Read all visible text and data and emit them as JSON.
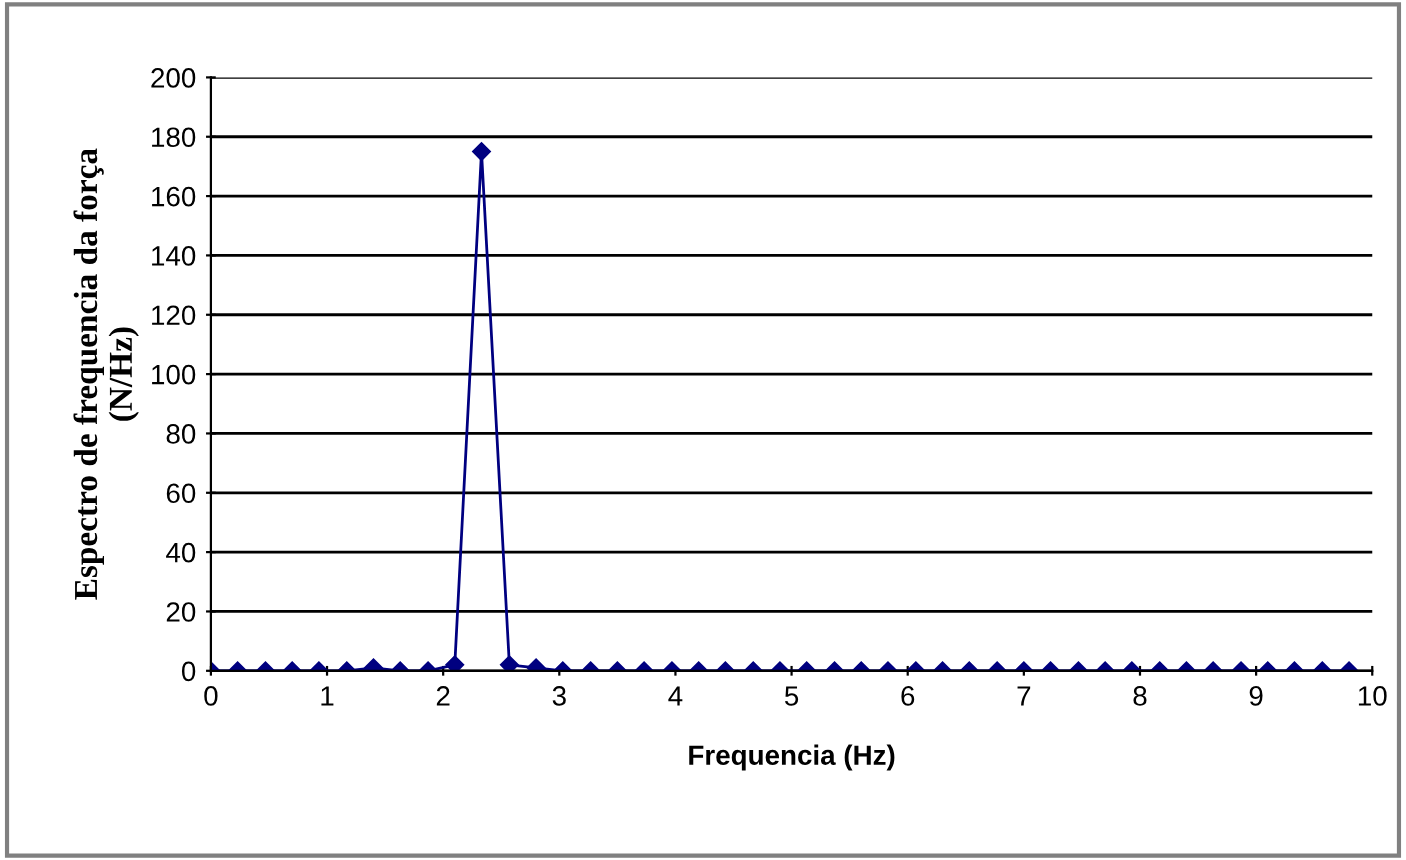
{
  "chart_data": {
    "type": "line",
    "xlabel": "Frequencia (Hz)",
    "ylabel": "Espectro de frequencia da força\n(N/Hz)",
    "x": [
      0,
      0.23,
      0.47,
      0.7,
      0.93,
      1.17,
      1.4,
      1.63,
      1.87,
      2.1,
      2.33,
      2.57,
      2.8,
      3.03,
      3.27,
      3.5,
      3.73,
      3.97,
      4.2,
      4.43,
      4.67,
      4.9,
      5.13,
      5.37,
      5.6,
      5.83,
      6.07,
      6.3,
      6.53,
      6.77,
      7.0,
      7.23,
      7.47,
      7.7,
      7.93,
      8.17,
      8.4,
      8.63,
      8.87,
      9.1,
      9.33,
      9.57,
      9.8
    ],
    "series": [
      {
        "color": "#000080",
        "values": [
          0,
          0,
          0,
          0,
          0,
          0,
          1,
          0,
          0,
          2,
          175,
          2,
          1,
          0,
          0,
          0,
          0,
          0,
          0,
          0,
          0,
          0,
          0,
          0,
          0,
          0,
          0,
          0,
          0,
          0,
          0,
          0,
          0,
          0,
          0,
          0,
          0,
          0,
          0,
          0,
          0,
          0,
          0
        ]
      }
    ],
    "xlim": [
      0,
      10
    ],
    "xticks": [
      0,
      1,
      2,
      3,
      4,
      5,
      6,
      7,
      8,
      9,
      10
    ],
    "ylim": [
      0,
      200
    ],
    "yticks": [
      0,
      20,
      40,
      60,
      80,
      100,
      120,
      140,
      160,
      180,
      200
    ],
    "grid": "y",
    "marker": "diamond",
    "line_style": "solid"
  }
}
